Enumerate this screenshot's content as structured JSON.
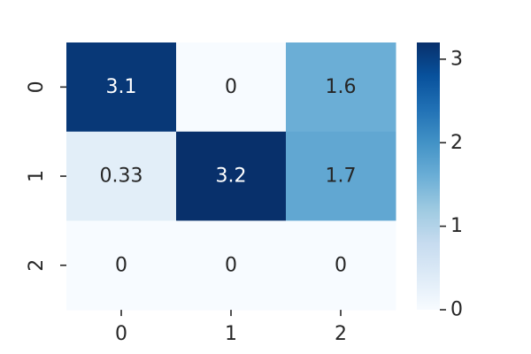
{
  "chart_data": {
    "type": "heatmap",
    "title": "",
    "xlabel": "",
    "ylabel": "",
    "x_categories": [
      "0",
      "1",
      "2"
    ],
    "y_categories": [
      "0",
      "1",
      "2"
    ],
    "values": [
      [
        3.1,
        0,
        1.6
      ],
      [
        0.33,
        3.2,
        1.7
      ],
      [
        0,
        0,
        0
      ]
    ],
    "cell_labels": [
      [
        "3.1",
        "0",
        "1.6"
      ],
      [
        "0.33",
        "3.2",
        "1.7"
      ],
      [
        "0",
        "0",
        "0"
      ]
    ],
    "colormap": "Blues",
    "colorbar": {
      "range": [
        0,
        3.2
      ],
      "ticks": [
        0,
        1,
        2,
        3
      ],
      "tick_labels": [
        "0",
        "1",
        "2",
        "3"
      ]
    },
    "grid": false
  }
}
